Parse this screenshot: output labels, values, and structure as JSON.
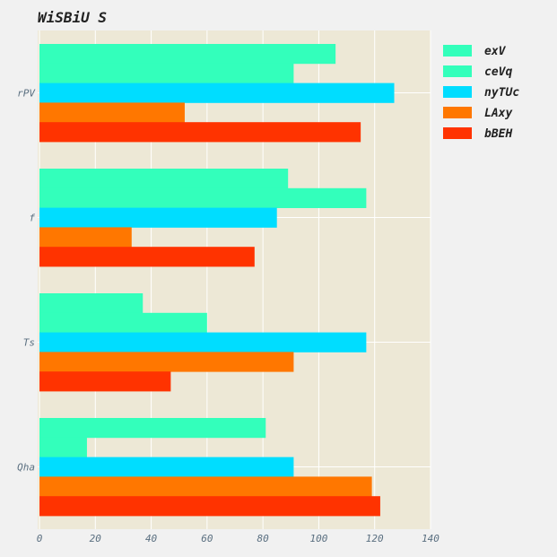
{
  "chart_data": {
    "type": "bar",
    "orientation": "horizontal",
    "title": "WiSBiU S",
    "xlabel": "",
    "ylabel": "",
    "categories": [
      "rPV",
      "f",
      "Ts",
      "Qha"
    ],
    "series": [
      {
        "name": "exV",
        "color": "#33ffbb",
        "values": [
          106,
          89,
          37,
          81
        ]
      },
      {
        "name": "ceVq",
        "color": "#33ffbb",
        "values": [
          91,
          117,
          60,
          17
        ]
      },
      {
        "name": "nyTUc",
        "color": "#00ddff",
        "values": [
          127,
          85,
          117,
          91
        ]
      },
      {
        "name": "LAxy",
        "color": "#ff7700",
        "values": [
          52,
          33,
          91,
          119
        ]
      },
      {
        "name": "bBEH",
        "color": "#ff3300",
        "values": [
          115,
          77,
          47,
          122
        ]
      }
    ],
    "xlim": [
      0,
      140
    ],
    "xticks": [
      0,
      20,
      40,
      60,
      80,
      100,
      120,
      140
    ],
    "grid": true,
    "legend_position": "top-right",
    "plot_background": "#ede8d6",
    "page_background": "#f1f1f1"
  }
}
